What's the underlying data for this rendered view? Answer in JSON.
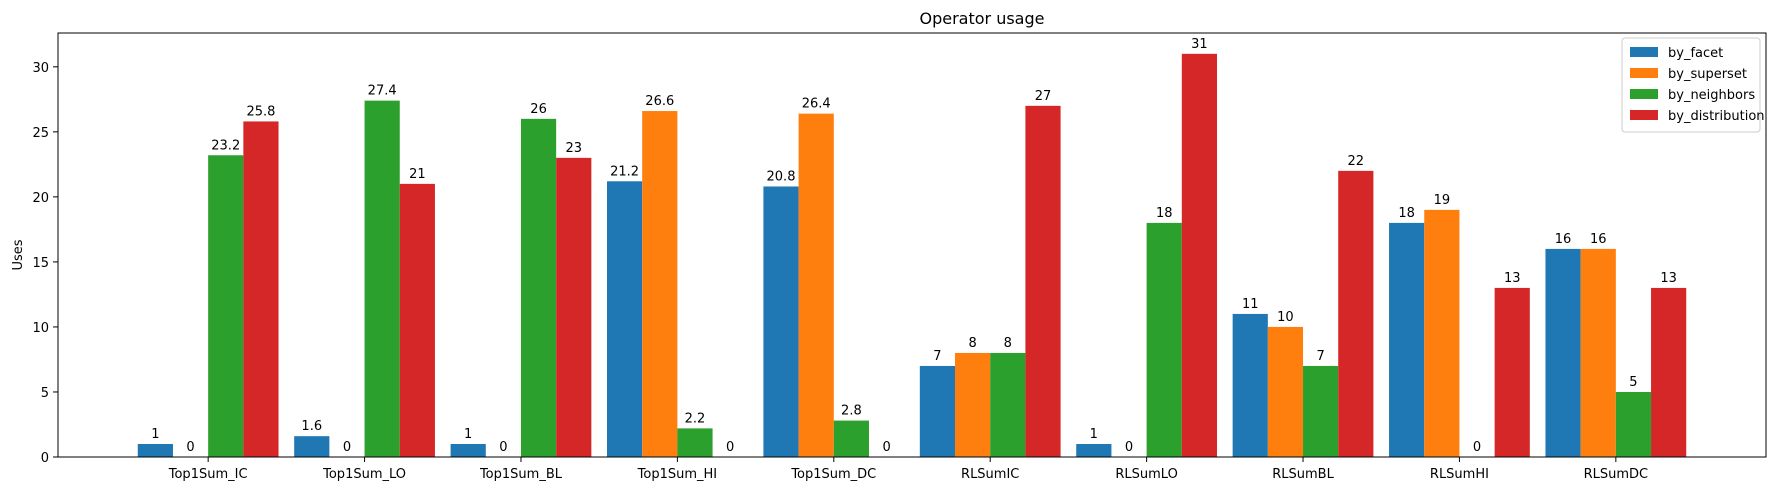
{
  "chart_data": {
    "type": "bar",
    "title": "Operator usage",
    "xlabel": "",
    "ylabel": "Uses",
    "ylim": [
      0,
      32.6
    ],
    "yticks": [
      0,
      5,
      10,
      15,
      20,
      25,
      30
    ],
    "grid": false,
    "legend_position": "top-right",
    "categories": [
      "Top1Sum_IC",
      "Top1Sum_LO",
      "Top1Sum_BL",
      "Top1Sum_HI",
      "Top1Sum_DC",
      "RLSumIC",
      "RLSumLO",
      "RLSumBL",
      "RLSumHI",
      "RLSumDC"
    ],
    "series": [
      {
        "name": "by_facet",
        "color": "#1f77b4",
        "values": [
          1,
          1.6,
          1,
          21.2,
          20.8,
          7,
          1,
          11,
          18,
          16
        ],
        "labels": [
          "1",
          "1.6",
          "1",
          "21.2",
          "20.8",
          "7",
          "1",
          "11",
          "18",
          "16"
        ]
      },
      {
        "name": "by_superset",
        "color": "#ff7f0e",
        "values": [
          0,
          0,
          0,
          26.6,
          26.4,
          8,
          0,
          10,
          19,
          16
        ],
        "labels": [
          "0",
          "0",
          "0",
          "26.6",
          "26.4",
          "8",
          "0",
          "10",
          "19",
          "16"
        ]
      },
      {
        "name": "by_neighbors",
        "color": "#2ca02c",
        "values": [
          23.2,
          27.4,
          26,
          2.2,
          2.8,
          8,
          18,
          7,
          0,
          5
        ],
        "labels": [
          "23.2",
          "27.4",
          "26",
          "2.2",
          "2.8",
          "8",
          "18",
          "7",
          "0",
          "5"
        ]
      },
      {
        "name": "by_distribution",
        "color": "#d62728",
        "values": [
          25.8,
          21,
          23,
          0,
          0,
          27,
          31,
          22,
          13,
          13
        ],
        "labels": [
          "25.8",
          "21",
          "23",
          "0",
          "0",
          "27",
          "31",
          "22",
          "13",
          "13"
        ]
      }
    ]
  }
}
